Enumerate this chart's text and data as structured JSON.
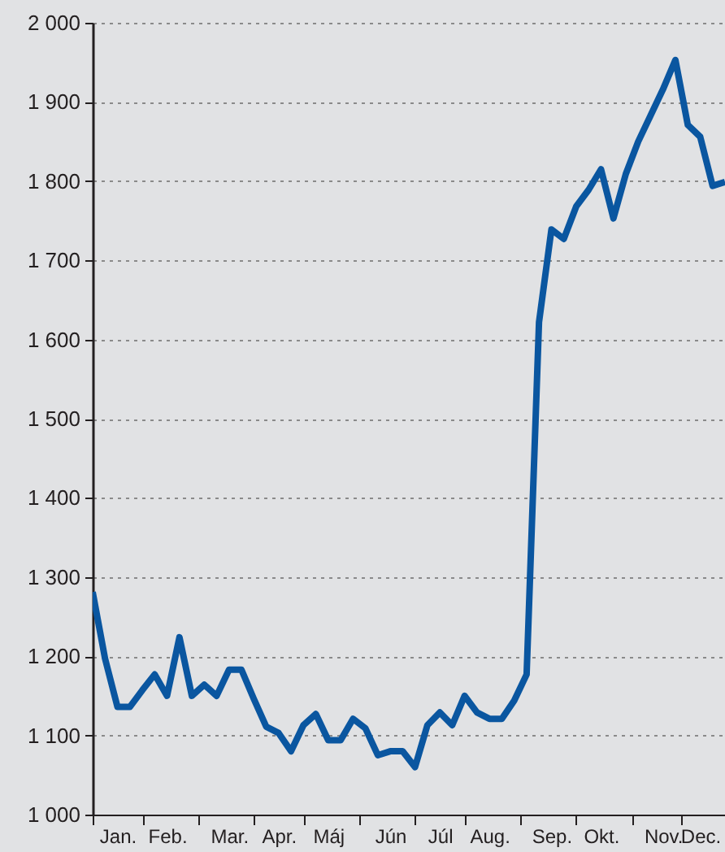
{
  "chart_data": {
    "type": "line",
    "categories": [
      null,
      null,
      "Jan.",
      null,
      null,
      null,
      "Feb.",
      null,
      null,
      null,
      null,
      "Mar.",
      null,
      null,
      null,
      "Apr.",
      null,
      null,
      null,
      "Máj",
      null,
      null,
      null,
      null,
      "Jún",
      null,
      null,
      null,
      "Júl",
      null,
      null,
      null,
      "Aug.",
      null,
      null,
      null,
      null,
      "Sep.",
      null,
      null,
      null,
      "Okt.",
      null,
      null,
      null,
      null,
      "Nov.",
      null,
      null,
      "Dec.",
      null,
      null
    ],
    "series": [
      {
        "color": "#0a56a0",
        "values": [
          1281,
          1197,
          1136,
          1136,
          1157,
          1177,
          1150,
          1224,
          1150,
          1164,
          1150,
          1183,
          1183,
          1146,
          1111,
          1103,
          1080,
          1113,
          1127,
          1094,
          1094,
          1121,
          1109,
          1075,
          1080,
          1080,
          1060,
          1113,
          1129,
          1113,
          1150,
          1129,
          1121,
          1121,
          1144,
          1177,
          1622,
          1739,
          1727,
          1768,
          1789,
          1815,
          1753,
          1809,
          1850,
          1883,
          1916,
          1953,
          1871,
          1856,
          1794,
          1799
        ]
      }
    ],
    "ylim": [
      1000,
      2000
    ],
    "yticks": [
      {
        "value": 1000,
        "label": "1 000"
      },
      {
        "value": 1100,
        "label": "1 100"
      },
      {
        "value": 1200,
        "label": "1 200"
      },
      {
        "value": 1300,
        "label": "1 300"
      },
      {
        "value": 1400,
        "label": "1 400"
      },
      {
        "value": 1500,
        "label": "1 500"
      },
      {
        "value": 1600,
        "label": "1 600"
      },
      {
        "value": 1700,
        "label": "1 700"
      },
      {
        "value": 1800,
        "label": "1 800"
      },
      {
        "value": 1900,
        "label": "1 900"
      },
      {
        "value": 2000,
        "label": "2 000"
      }
    ],
    "grid": "y",
    "line_style": "solid",
    "marker": "none"
  }
}
